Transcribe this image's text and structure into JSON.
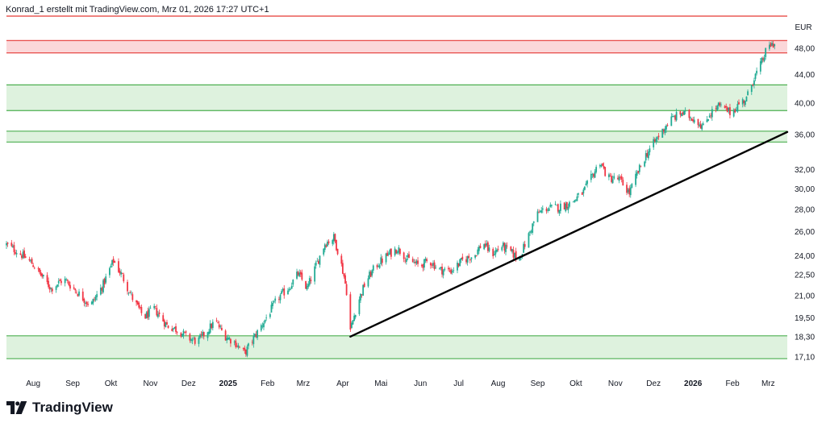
{
  "header": {
    "caption": "Konrad_1 erstellt mit TradingView.com, Mrz 01, 2026 17:27 UTC+1"
  },
  "brand": {
    "name": "TradingView"
  },
  "colors": {
    "up": "#22ab94",
    "down": "#f23645",
    "zone_green_fill": "#daf1da",
    "zone_green_line": "#4caf50",
    "zone_red_fill": "#fbd3d5",
    "zone_red_line": "#e53935",
    "trendline": "#000000",
    "axis_text": "#131722"
  },
  "chart_data": {
    "type": "candlestick",
    "currency_label": "EUR",
    "y_scale": "log",
    "y_ticks": [
      "48,00",
      "44,00",
      "40,00",
      "36,00",
      "32,00",
      "30,00",
      "28,00",
      "26,00",
      "24,00",
      "22,50",
      "21,00",
      "19,50",
      "18,30",
      "17,10"
    ],
    "x_labels": [
      {
        "text": "Aug",
        "date": "2024-08-01",
        "bold": false
      },
      {
        "text": "Sep",
        "date": "2024-09-01",
        "bold": false
      },
      {
        "text": "Okt",
        "date": "2024-10-01",
        "bold": false
      },
      {
        "text": "Nov",
        "date": "2024-11-01",
        "bold": false
      },
      {
        "text": "Dez",
        "date": "2024-12-01",
        "bold": false
      },
      {
        "text": "2025",
        "date": "2025-01-01",
        "bold": true
      },
      {
        "text": "Feb",
        "date": "2025-02-01",
        "bold": false
      },
      {
        "text": "Mrz",
        "date": "2025-03-01",
        "bold": false
      },
      {
        "text": "Apr",
        "date": "2025-04-01",
        "bold": false
      },
      {
        "text": "Mai",
        "date": "2025-05-01",
        "bold": false
      },
      {
        "text": "Jun",
        "date": "2025-06-01",
        "bold": false
      },
      {
        "text": "Jul",
        "date": "2025-07-01",
        "bold": false
      },
      {
        "text": "Aug",
        "date": "2025-08-01",
        "bold": false
      },
      {
        "text": "Sep",
        "date": "2025-09-01",
        "bold": false
      },
      {
        "text": "Okt",
        "date": "2025-10-01",
        "bold": false
      },
      {
        "text": "Nov",
        "date": "2025-11-01",
        "bold": false
      },
      {
        "text": "Dez",
        "date": "2025-12-01",
        "bold": false
      },
      {
        "text": "2026",
        "date": "2026-01-01",
        "bold": true
      },
      {
        "text": "Feb",
        "date": "2026-02-01",
        "bold": false
      },
      {
        "text": "Mrz",
        "date": "2026-03-01",
        "bold": false
      }
    ],
    "x_range": [
      "2024-07-11",
      "2026-03-16"
    ],
    "y_range": [
      16.6,
      53.5
    ],
    "zones": [
      {
        "kind": "resistance",
        "color": "red",
        "from": 47.3,
        "to": 49.3
      },
      {
        "kind": "support",
        "color": "green",
        "from": 39.0,
        "to": 42.5
      },
      {
        "kind": "support",
        "color": "green",
        "from": 35.1,
        "to": 36.4
      },
      {
        "kind": "support",
        "color": "green",
        "from": 17.0,
        "to": 18.35
      }
    ],
    "horizontal_lines": [
      {
        "color": "red",
        "value": 53.5
      }
    ],
    "trendline": {
      "from": {
        "date": "2025-04-07",
        "value": 18.3
      },
      "to": {
        "date": "2026-03-16",
        "value": 36.3
      }
    },
    "close_path": [
      [
        "2024-07-11",
        24.9
      ],
      [
        "2024-07-20",
        24.3
      ],
      [
        "2024-07-31",
        23.4
      ],
      [
        "2024-08-07",
        22.5
      ],
      [
        "2024-08-15",
        21.5
      ],
      [
        "2024-08-25",
        22.2
      ],
      [
        "2024-09-04",
        21.3
      ],
      [
        "2024-09-15",
        20.3
      ],
      [
        "2024-09-25",
        21.8
      ],
      [
        "2024-10-03",
        23.6
      ],
      [
        "2024-10-10",
        22.4
      ],
      [
        "2024-10-18",
        20.8
      ],
      [
        "2024-10-27",
        19.5
      ],
      [
        "2024-11-04",
        20.1
      ],
      [
        "2024-11-14",
        19.0
      ],
      [
        "2024-11-23",
        18.7
      ],
      [
        "2024-12-01",
        18.2
      ],
      [
        "2024-12-08",
        18.0
      ],
      [
        "2024-12-15",
        18.6
      ],
      [
        "2024-12-22",
        19.3
      ],
      [
        "2024-12-29",
        18.4
      ],
      [
        "2025-01-07",
        17.9
      ],
      [
        "2025-01-14",
        17.3
      ],
      [
        "2025-01-21",
        18.2
      ],
      [
        "2025-01-31",
        19.5
      ],
      [
        "2025-02-09",
        20.8
      ],
      [
        "2025-02-18",
        21.6
      ],
      [
        "2025-02-25",
        22.6
      ],
      [
        "2025-03-04",
        21.5
      ],
      [
        "2025-03-11",
        23.2
      ],
      [
        "2025-03-18",
        25.0
      ],
      [
        "2025-03-25",
        25.5
      ],
      [
        "2025-03-29",
        24.1
      ],
      [
        "2025-04-02",
        22.4
      ],
      [
        "2025-04-05",
        20.8
      ],
      [
        "2025-04-07",
        18.7
      ],
      [
        "2025-04-12",
        20.3
      ],
      [
        "2025-04-19",
        22.0
      ],
      [
        "2025-04-27",
        23.2
      ],
      [
        "2025-05-07",
        24.1
      ],
      [
        "2025-05-14",
        24.6
      ],
      [
        "2025-05-22",
        23.7
      ],
      [
        "2025-05-31",
        23.2
      ],
      [
        "2025-06-08",
        23.6
      ],
      [
        "2025-06-16",
        22.9
      ],
      [
        "2025-06-25",
        22.8
      ],
      [
        "2025-07-04",
        23.6
      ],
      [
        "2025-07-14",
        24.1
      ],
      [
        "2025-07-20",
        25.1
      ],
      [
        "2025-07-27",
        24.1
      ],
      [
        "2025-08-04",
        24.8
      ],
      [
        "2025-08-12",
        24.2
      ],
      [
        "2025-08-17",
        23.7
      ],
      [
        "2025-08-24",
        25.4
      ],
      [
        "2025-08-31",
        27.5
      ],
      [
        "2025-09-07",
        28.1
      ],
      [
        "2025-09-17",
        28.2
      ],
      [
        "2025-09-27",
        28.6
      ],
      [
        "2025-10-07",
        29.7
      ],
      [
        "2025-10-15",
        31.6
      ],
      [
        "2025-10-20",
        32.9
      ],
      [
        "2025-10-26",
        31.1
      ],
      [
        "2025-11-04",
        31.0
      ],
      [
        "2025-11-12",
        29.6
      ],
      [
        "2025-11-18",
        31.5
      ],
      [
        "2025-11-25",
        33.6
      ],
      [
        "2025-12-04",
        35.6
      ],
      [
        "2025-12-14",
        37.8
      ],
      [
        "2025-12-23",
        38.7
      ],
      [
        "2026-01-03",
        37.9
      ],
      [
        "2026-01-09",
        36.9
      ],
      [
        "2026-01-14",
        38.6
      ],
      [
        "2026-01-21",
        39.6
      ],
      [
        "2026-01-31",
        38.7
      ],
      [
        "2026-02-06",
        39.9
      ],
      [
        "2026-02-12",
        40.6
      ],
      [
        "2026-02-18",
        43.6
      ],
      [
        "2026-02-22",
        44.9
      ],
      [
        "2026-02-27",
        47.4
      ],
      [
        "2026-03-03",
        48.6
      ],
      [
        "2026-03-08",
        48.9
      ]
    ]
  }
}
